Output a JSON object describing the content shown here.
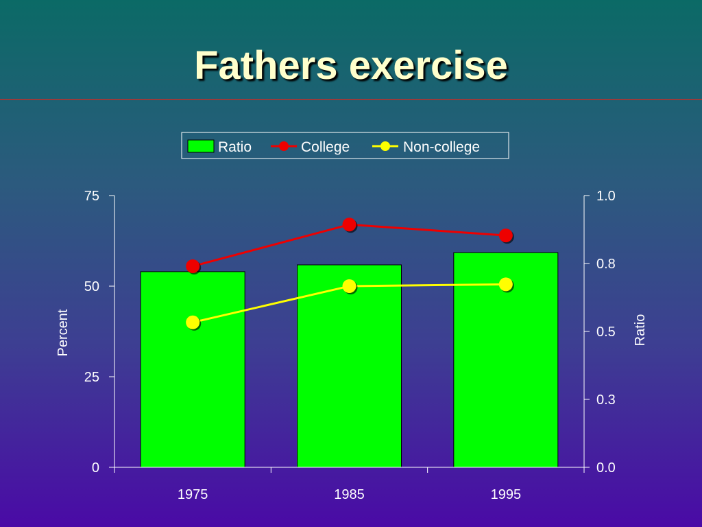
{
  "slide": {
    "title": "Fathers exercise"
  },
  "colors": {
    "ratio_bar": "#00ff00",
    "college": "#ee0000",
    "non_college": "#ffff00",
    "text": "#ffffff"
  },
  "chart_data": {
    "type": "bar",
    "categories": [
      "1975",
      "1985",
      "1995"
    ],
    "series": [
      {
        "name": "Ratio",
        "type": "bar",
        "axis": "right",
        "values": [
          0.72,
          0.745,
          0.79
        ]
      },
      {
        "name": "College",
        "type": "line",
        "axis": "left",
        "values": [
          55.5,
          67,
          64
        ]
      },
      {
        "name": "Non-college",
        "type": "line",
        "axis": "left",
        "values": [
          40,
          50,
          50.5
        ]
      }
    ],
    "left_axis": {
      "label": "Percent",
      "range": [
        0,
        75
      ],
      "ticks": [
        "0",
        "25",
        "50",
        "75"
      ]
    },
    "right_axis": {
      "label": "Ratio",
      "range": [
        0,
        1
      ],
      "ticks": [
        "0.0",
        "0.3",
        "0.5",
        "0.8",
        "1.0"
      ]
    },
    "legend": {
      "placement": "top-center",
      "entries": [
        "Ratio",
        "College",
        "Non-college"
      ]
    },
    "grid": false
  }
}
